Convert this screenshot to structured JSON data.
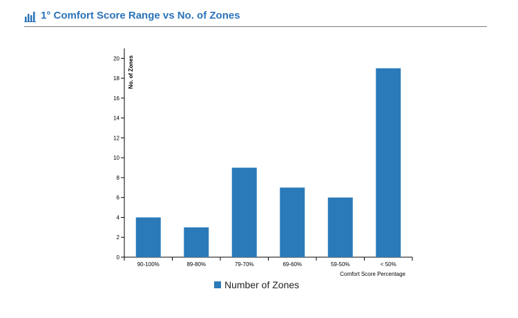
{
  "header": {
    "title": "1° Comfort Score Range vs No. of Zones",
    "icon": "bar-chart-icon",
    "accent_color": "#2a73b8"
  },
  "chart_data": {
    "type": "bar",
    "categories": [
      "90-100%",
      "89-80%",
      "79-70%",
      "69-60%",
      "59-50%",
      "< 50%"
    ],
    "series": [
      {
        "name": "Number of Zones",
        "values": [
          4,
          3,
          9,
          7,
          6,
          19
        ],
        "color": "#2a7ab9"
      }
    ],
    "xlabel": "Comfort Score Percentage",
    "ylabel": "No. of Zones",
    "ylim": [
      0,
      21
    ],
    "yticks": [
      0,
      2,
      4,
      6,
      8,
      10,
      12,
      14,
      16,
      18,
      20
    ],
    "grid": false,
    "legend": "bottom-center"
  }
}
